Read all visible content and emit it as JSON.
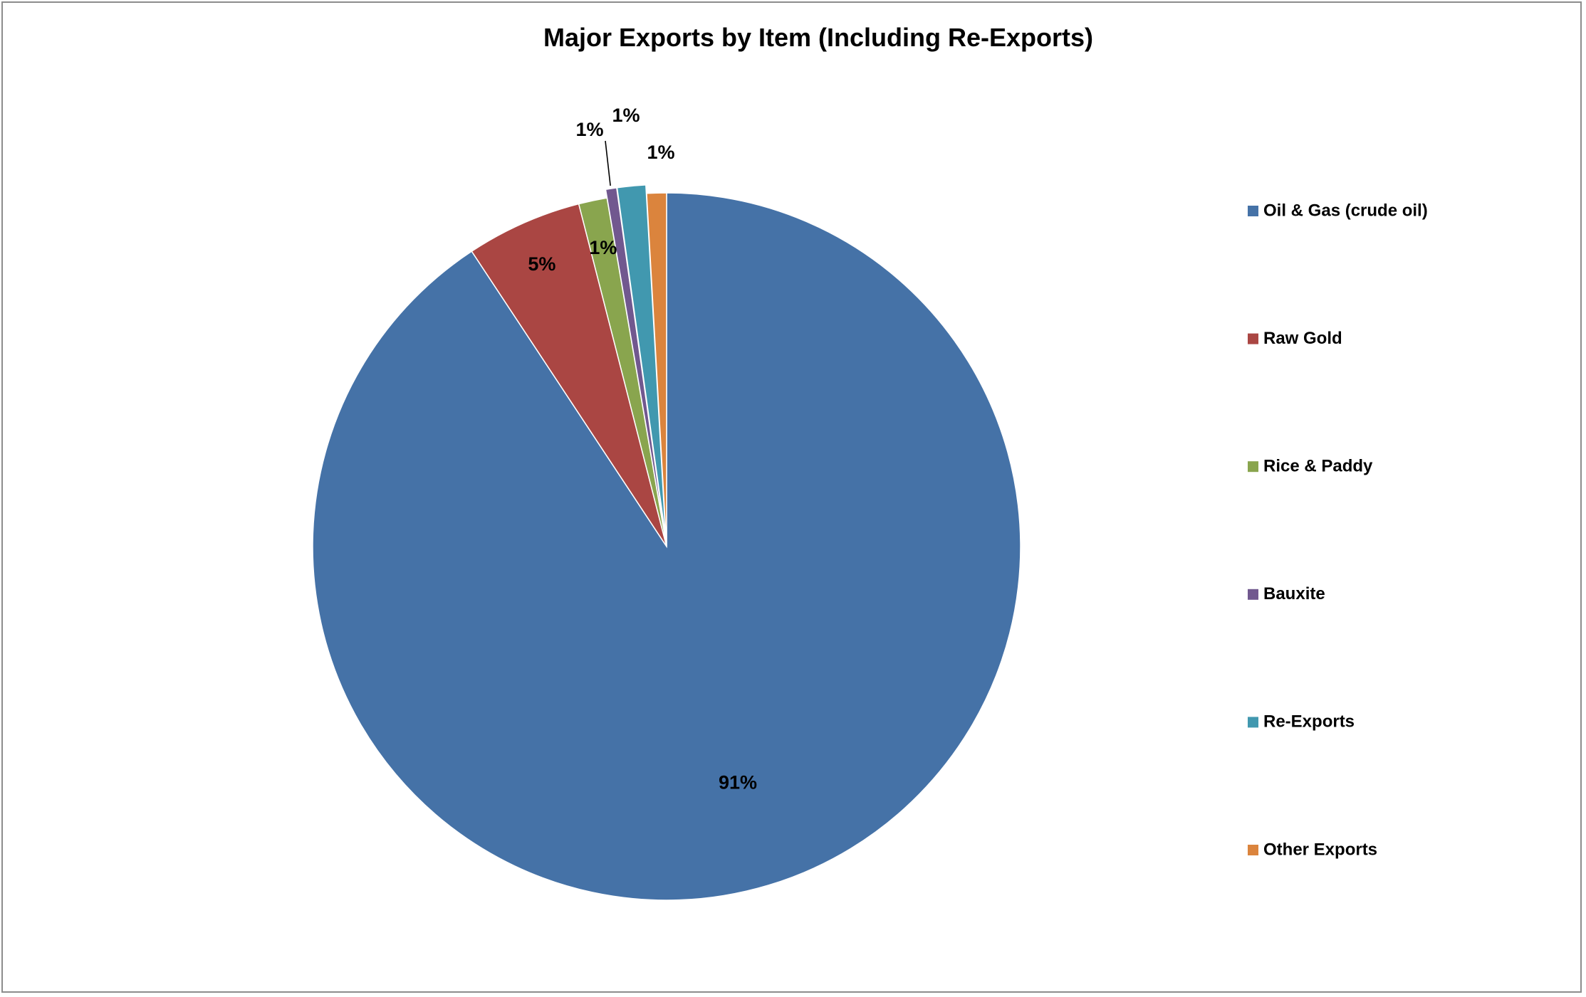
{
  "chart_data": {
    "type": "pie",
    "title": "Major Exports by Item (Including Re-Exports)",
    "start_angle_deg": 0,
    "direction": "clockwise",
    "exploded": [
      "Bauxite",
      "Re-Exports"
    ],
    "legend_position": "right",
    "slices": [
      {
        "name": "Oil & Gas (crude oil)",
        "value": 90.9,
        "label": "91%",
        "color": "#4572A7"
      },
      {
        "name": "Raw Gold",
        "value": 5.3,
        "label": "5%",
        "color": "#AA4643"
      },
      {
        "name": "Rice & Paddy",
        "value": 1.3,
        "label": "1%",
        "color": "#89A54E"
      },
      {
        "name": "Bauxite",
        "value": 0.5,
        "label": "1%",
        "color": "#71588F"
      },
      {
        "name": "Re-Exports",
        "value": 1.3,
        "label": "1%",
        "color": "#4198AF"
      },
      {
        "name": "Other Exports",
        "value": 0.9,
        "label": "1%",
        "color": "#DB843D"
      }
    ]
  }
}
